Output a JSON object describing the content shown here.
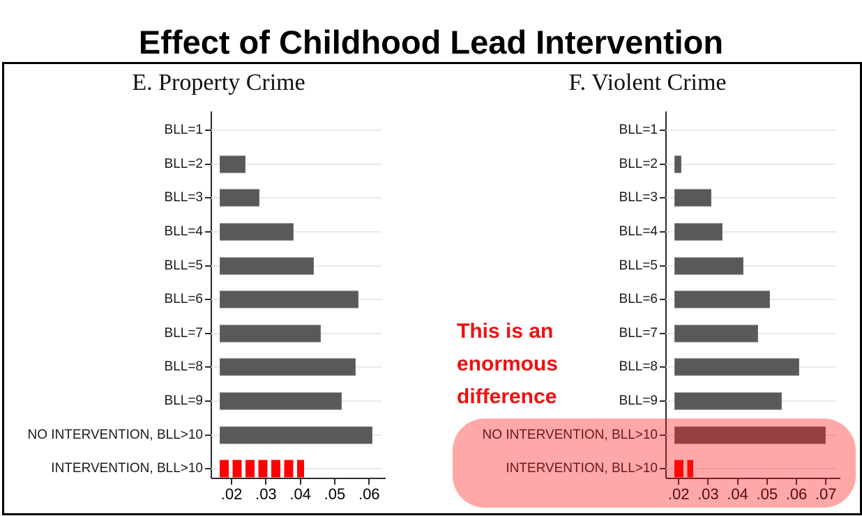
{
  "page": {
    "title": "Effect of Childhood Lead Intervention"
  },
  "annotation": {
    "lines": [
      "This is an",
      "enormous",
      "difference"
    ],
    "color": "#ee1111"
  },
  "highlight": {
    "shape": "rounded-rectangle",
    "color_rgba": "rgba(255,20,20,0.37)",
    "covers": [
      "NO INTERVENTION, BLL>10",
      "INTERVENTION, BLL>10",
      "x-axis labels of violent crime panel"
    ]
  },
  "colors": {
    "bar_gray": "#595959",
    "bar_red": "#ff0000",
    "axis": "#2b2b2b",
    "gridline": "#e9e9e9",
    "title_text": "#000000"
  },
  "chart_data": [
    {
      "type": "bar",
      "orientation": "horizontal",
      "title": "E. Property Crime",
      "categories": [
        "BLL=1",
        "BLL=2",
        "BLL=3",
        "BLL=4",
        "BLL=5",
        "BLL=6",
        "BLL=7",
        "BLL=8",
        "BLL=9",
        "NO INTERVENTION, BLL>10",
        "INTERVENTION, BLL>10"
      ],
      "values": [
        null,
        0.024,
        0.028,
        0.038,
        0.044,
        0.057,
        0.046,
        0.056,
        0.052,
        0.061,
        0.041
      ],
      "bar_styles": [
        "gray",
        "gray",
        "gray",
        "gray",
        "gray",
        "gray",
        "gray",
        "gray",
        "gray",
        "gray",
        "red-striped"
      ],
      "xtick_labels": [
        ".02",
        ".03",
        ".04",
        ".05",
        ".06"
      ],
      "xtick_values": [
        0.02,
        0.03,
        0.04,
        0.05,
        0.06
      ],
      "xlim": [
        0.0141,
        0.0636
      ],
      "bar_base": 0.0166,
      "xlabel": "",
      "ylabel": "",
      "grid": "horizontal-light"
    },
    {
      "type": "bar",
      "orientation": "horizontal",
      "title": "F. Violent Crime",
      "categories": [
        "BLL=1",
        "BLL=2",
        "BLL=3",
        "BLL=4",
        "BLL=5",
        "BLL=6",
        "BLL=7",
        "BLL=8",
        "BLL=9",
        "NO INTERVENTION, BLL>10",
        "INTERVENTION, BLL>10"
      ],
      "values": [
        null,
        0.021,
        0.031,
        0.035,
        0.042,
        0.051,
        0.047,
        0.061,
        0.055,
        0.07,
        0.025
      ],
      "bar_styles": [
        "gray",
        "gray",
        "gray",
        "gray",
        "gray",
        "gray",
        "gray",
        "gray",
        "gray",
        "gray",
        "red-striped"
      ],
      "xtick_labels": [
        ".02",
        ".03",
        ".04",
        ".05",
        ".06",
        ".07"
      ],
      "xtick_values": [
        0.02,
        0.03,
        0.04,
        0.05,
        0.06,
        0.07
      ],
      "xlim": [
        0.0157,
        0.0735
      ],
      "bar_base": 0.0186,
      "xlabel": "",
      "ylabel": "",
      "grid": "horizontal-light"
    }
  ]
}
